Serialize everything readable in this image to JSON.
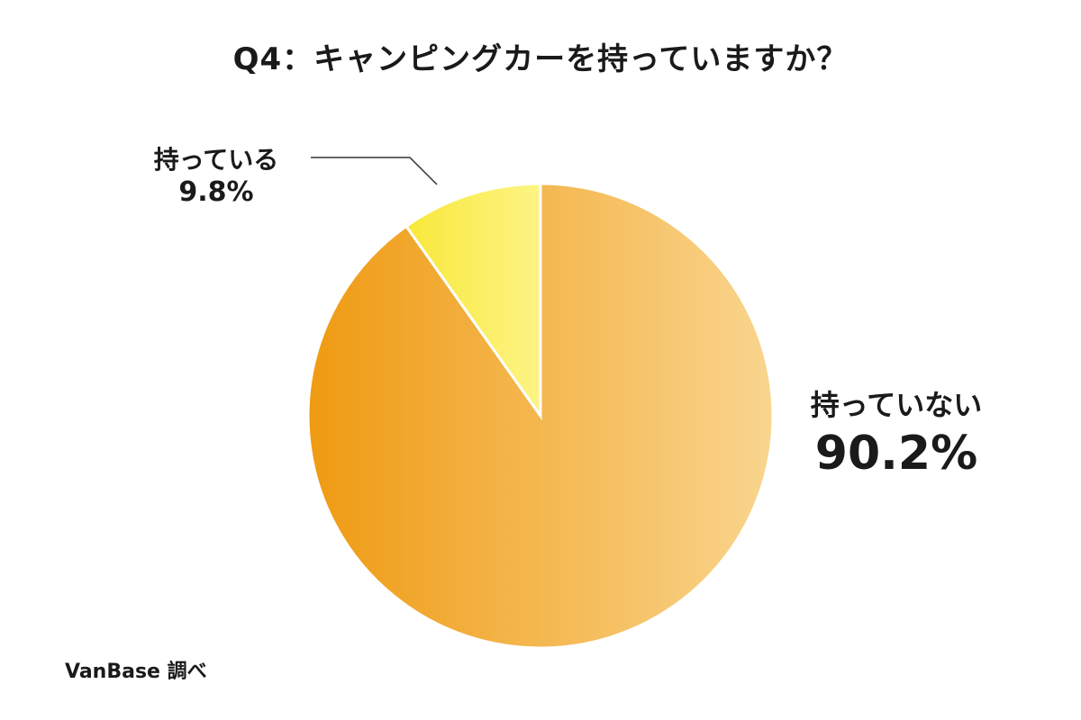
{
  "title": "Q4：キャンピングカーを持っていますか？",
  "source": "VanBase 調べ",
  "chart_data": {
    "type": "pie",
    "title": "Q4：キャンピングカーを持っていますか？",
    "slices": [
      {
        "label": "持っている",
        "value": 9.8,
        "display": "9.8%",
        "color_from": "#f8e83a",
        "color_to": "#fdf486"
      },
      {
        "label": "持っていない",
        "value": 90.2,
        "display": "90.2%",
        "color_from": "#ef9a12",
        "color_to": "#f9d58e"
      }
    ],
    "start_angle": "12 o'clock",
    "direction": "counter-clockwise for first slice"
  }
}
